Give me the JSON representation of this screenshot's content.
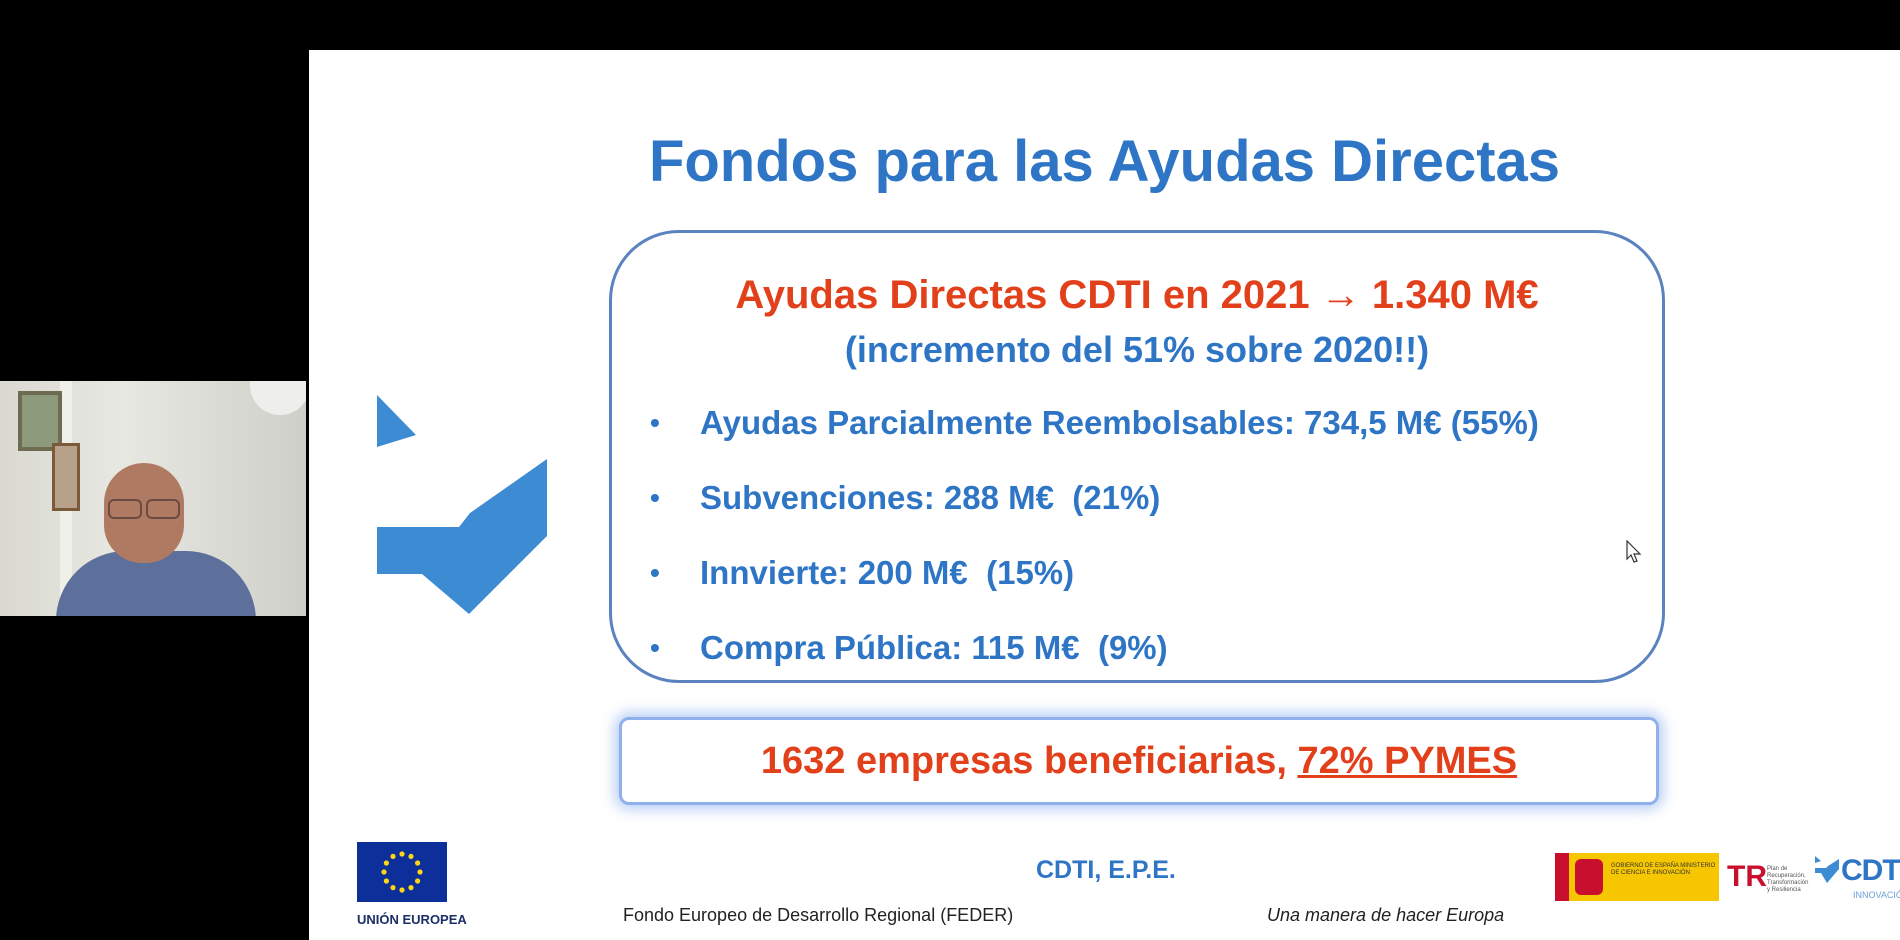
{
  "slide": {
    "title": "Fondos para las Ayudas Directas",
    "headline": "Ayudas Directas CDTI en 2021 → 1.340 M€",
    "subheadline": "(incremento del 51% sobre 2020!!)",
    "bullets": [
      "Ayudas Parcialmente Reembolsables: 734,5 M€ (55%)",
      "Subvenciones: 288 M€  (21%)",
      "Innvierte: 200 M€  (15%)",
      "Compra Pública: 115 M€  (9%)"
    ],
    "highlight": {
      "text": "1632 empresas beneficiarias, ",
      "underlined": "72% PYMES"
    },
    "footer": {
      "eu_label": "UNIÓN EUROPEA",
      "org": "CDTI, E.P.E.",
      "fund": "Fondo Europeo de Desarrollo Regional (FEDER)",
      "motto": "Una manera de hacer Europa",
      "gov_text": "GOBIERNO DE ESPAÑA   MINISTERIO DE CIENCIA E INNOVACIÓN",
      "prtr_text": "Plan de Recuperación, Transformación y Resiliencia",
      "cdti_word": "CDTI",
      "cdti_sub": "INNOVACIÓN"
    }
  },
  "colors": {
    "title_blue": "#2e75c6",
    "accent_red": "#e2401b",
    "box_border": "#5b83bf"
  },
  "icons": [
    "cdti-logo-icon",
    "eu-flag-icon",
    "cursor-icon"
  ]
}
